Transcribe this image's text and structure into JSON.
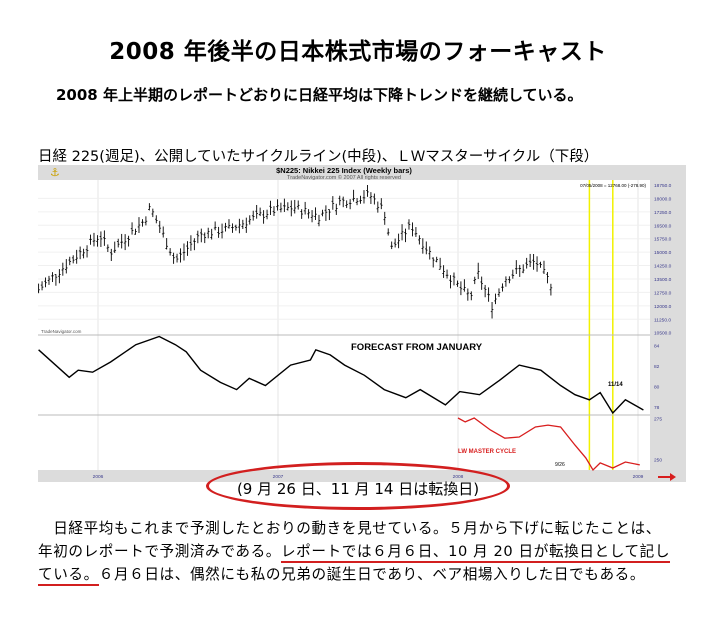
{
  "title": "2008 年後半の日本株式市場のフォーキャスト",
  "subtitle": "2008 年上半期のレポートどおりに日経平均は下降トレンドを継続している。",
  "caption": "日経 225(週足)、公開していたサイクルライン(中段)、ＬＷマスターサイクル（下段）",
  "ellipse_note": "(9 月 26 日、11 月 14 日は転換日)",
  "paragraph": {
    "line1": "　日経平均もこれまで予測したとおりの動きを見せている。５月から下げに転じたことは、",
    "line2_a": "年初のレポートで予測済みである。",
    "line2_b": "レポートでは６月６日、10 月 20 日が転換日として記し",
    "line3_a": "ている。",
    "line3_b": "６月６日は、偶然にも私の兄弟の誕生日であり、ベア相場入りした日でもある。"
  },
  "colors": {
    "accent_red": "#d21f1f",
    "cycle_red": "#d81e1e",
    "turn_line": "#f2f200",
    "panel_gray": "#dcdcdc",
    "axis_text": "#3a3a8c"
  },
  "chart_data": {
    "type": "line",
    "title": "$N225:  Nikkei 225 Index  (Weekly bars)",
    "subtitle": "TradeNavigator.com © 2007 All rights reserved",
    "readout": "07/05/2008 = 12768.00 (-278.90)",
    "watermark": "TradeNavigator.com",
    "x_ticks": [
      "2006",
      "2007",
      "2008",
      "2009"
    ],
    "x_tick_values": [
      2006,
      2007,
      2008,
      2009
    ],
    "turning_points": [
      2008.73,
      2008.86
    ],
    "panels": [
      {
        "name": "Nikkei 225 weekly bars",
        "ylim": [
          10500,
          18750
        ],
        "y_ticks": [
          "18750.0",
          "18000.0",
          "17250.0",
          "16500.0",
          "15750.0",
          "15000.0",
          "14250.0",
          "13500.0",
          "12750.0",
          "12000.0",
          "11250.0",
          "10500.0"
        ],
        "y_tick_values": [
          18750,
          18000,
          17250,
          16500,
          15750,
          15000,
          14250,
          13500,
          12750,
          12000,
          11250,
          10500
        ],
        "x": [
          2005.67,
          2006.01,
          2006.07,
          2006.26,
          2006.29,
          2006.43,
          2006.57,
          2006.73,
          2006.96,
          2007.09,
          2007.23,
          2007.34,
          2007.51,
          2007.59,
          2007.63,
          2007.74,
          2007.84,
          2008.01,
          2008.07,
          2008.11,
          2008.19,
          2008.26,
          2008.34,
          2008.43,
          2008.53
        ],
        "y": [
          12900,
          15950,
          15000,
          16800,
          17500,
          14500,
          16000,
          16300,
          17300,
          17500,
          17000,
          17800,
          18200,
          17300,
          15200,
          16500,
          15000,
          13000,
          12500,
          13800,
          12000,
          13500,
          14000,
          14500,
          13000
        ]
      },
      {
        "name": "Cycle forecast",
        "label": "FORECAST FROM JANUARY",
        "annotation": "11/14",
        "ylim": [
          76,
          85
        ],
        "y_ticks": [
          "84",
          "82",
          "80",
          "78"
        ],
        "y_tick_values": [
          84,
          82,
          80,
          78
        ],
        "x": [
          2005.67,
          2005.84,
          2005.89,
          2005.97,
          2006.07,
          2006.21,
          2006.34,
          2006.43,
          2006.49,
          2006.57,
          2006.68,
          2006.77,
          2006.84,
          2006.93,
          2007.07,
          2007.18,
          2007.21,
          2007.29,
          2007.37,
          2007.48,
          2007.59,
          2007.71,
          2007.79,
          2007.93,
          2008.01,
          2008.12,
          2008.23,
          2008.34,
          2008.46,
          2008.57,
          2008.65,
          2008.73,
          2008.79,
          2008.86,
          2008.93,
          2008.98,
          2009.03
        ],
        "y": [
          83.6,
          80.9,
          81.6,
          81.4,
          82.4,
          84.1,
          84.9,
          84.1,
          83.4,
          81.6,
          80.4,
          79.7,
          80.8,
          80.1,
          82.1,
          82.6,
          83.6,
          83.1,
          82.1,
          81.1,
          79.7,
          78.9,
          79.7,
          78.2,
          79.5,
          79.2,
          80.6,
          82.1,
          81.6,
          80.1,
          79.2,
          78.7,
          79.4,
          77.4,
          78.7,
          78.2,
          77.7
        ]
      },
      {
        "name": "LW Master Cycle",
        "label": "LW MASTER CYCLE",
        "annotation": "9/26",
        "ylim": [
          240,
          277
        ],
        "y_ticks": [
          "275",
          "250"
        ],
        "y_tick_values": [
          275,
          250
        ],
        "x": [
          2008.0,
          2008.04,
          2008.09,
          2008.18,
          2008.26,
          2008.34,
          2008.43,
          2008.5,
          2008.57,
          2008.65,
          2008.71,
          2008.75,
          2008.79,
          2008.86,
          2008.93,
          2009.01
        ],
        "y": [
          275.3,
          272.9,
          275.3,
          268,
          263,
          263.7,
          269.8,
          271,
          269.8,
          258.8,
          251,
          243.6,
          247.9,
          244.8,
          248.5,
          246.7
        ]
      }
    ]
  }
}
